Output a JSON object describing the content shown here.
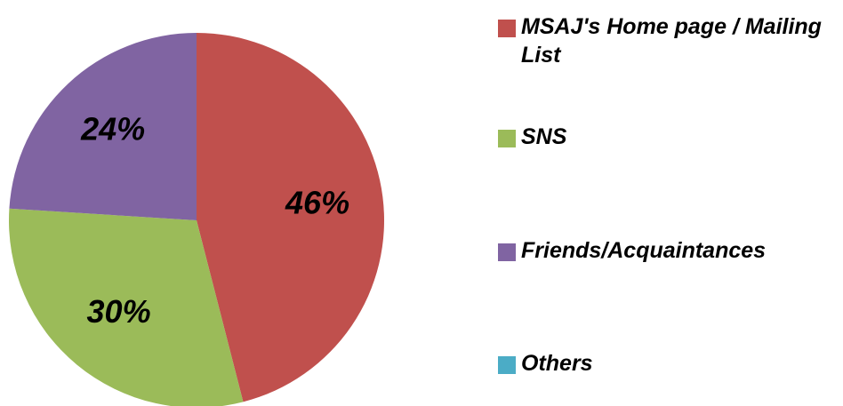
{
  "chart_data": {
    "type": "pie",
    "categories": [
      "MSAJ's Home page / Mailing List",
      "SNS",
      "Friends/Acquaintances",
      "Others"
    ],
    "values": [
      46,
      30,
      24,
      0
    ],
    "value_labels": [
      "46%",
      "30%",
      "24%",
      null
    ],
    "colors": [
      "#c0504d",
      "#9bbb59",
      "#8064a2",
      "#4bacc6"
    ],
    "legend": "right"
  }
}
